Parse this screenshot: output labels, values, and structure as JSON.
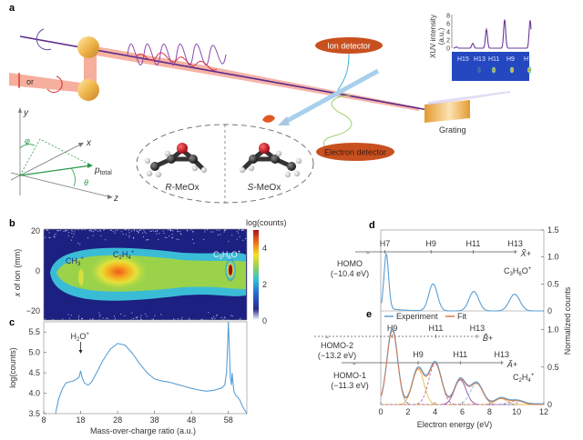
{
  "figure": {
    "panels": {
      "a": {
        "letter": "a",
        "polarization_label": "or",
        "ion_detector_label": "Ion detector",
        "electron_detector_label": "Electron detector",
        "grating_label": "Grating",
        "axes": {
          "y": "y",
          "x": "x",
          "z": "z",
          "phi": "φ",
          "theta": "θ",
          "p": "p",
          "p_sub": "total"
        },
        "molecules": [
          {
            "prefix": "R",
            "name": "-MeOx"
          },
          {
            "prefix": "S",
            "name": "-MeOx"
          }
        ],
        "xuv_inset": {
          "ylabel_line1": "XUV intensity",
          "ylabel_line2": "(a.u.)",
          "yticks": [
            "0",
            "2",
            "4",
            "6",
            "8"
          ],
          "harmonics": [
            "H15",
            "H13",
            "H11",
            "H9",
            "H7"
          ],
          "peak_values": [
            0.3,
            1.2,
            4.6,
            7.0,
            6.8
          ]
        }
      },
      "b": {
        "letter": "b",
        "ylabel_prefix": "x",
        "ylabel_rest": " of ion (mm)",
        "yticks": [
          "20",
          "0",
          "−20"
        ],
        "colorbar_label": "log(counts)",
        "colorbar_ticks": [
          "4",
          "2",
          "0"
        ],
        "species": [
          {
            "base": "CH",
            "sub": "3",
            "sup": "+"
          },
          {
            "base": "C",
            "sub": "2",
            "mid": "H",
            "sub2": "4",
            "sup": "+"
          },
          {
            "base": "C",
            "sub": "3",
            "mid": "H",
            "sub2": "6",
            "tail": "O",
            "sup": "+"
          }
        ]
      },
      "c": {
        "letter": "c"
      },
      "d": {
        "letter": "d",
        "orbital": "HOMO",
        "energy": "(−10.4 eV)",
        "state": "X̃",
        "ion": {
          "base": "C",
          "sub": "3",
          "mid": "H",
          "sub2": "6",
          "tail": "O",
          "sup": "+"
        },
        "harmonics": [
          "H7",
          "H9",
          "H11",
          "H13"
        ]
      },
      "e": {
        "letter": "e",
        "legend": [
          {
            "label": "Experiment",
            "color": "#5a9fd4"
          },
          {
            "label": "Fit",
            "color": "#d9784a"
          }
        ],
        "homo2": {
          "orbital": "HOMO-2",
          "energy": "(−13.2 eV)",
          "state": "B̃",
          "harmonics": [
            "H9",
            "H11",
            "H13"
          ]
        },
        "homo1": {
          "orbital": "HOMO-1",
          "energy": "(−11.3 eV)",
          "state": "Ã",
          "harmonics": [
            "H9",
            "H11",
            "H13"
          ]
        },
        "ion": {
          "base": "C",
          "sub": "2",
          "mid": "H",
          "sub2": "4",
          "sup": "+"
        }
      },
      "right_axis_label": "Normalized counts",
      "de_xlabel": "Electron energy (eV)"
    }
  },
  "chart_data": [
    {
      "id": "c",
      "type": "line",
      "title": "",
      "xlabel": "Mass-over-charge ratio (a.u.)",
      "ylabel": "log(counts)",
      "xlim": [
        8,
        63
      ],
      "ylim": [
        3.5,
        5.75
      ],
      "xticks": [
        8,
        18,
        28,
        38,
        48,
        58
      ],
      "yticks": [
        3.5,
        4.0,
        4.5,
        5.0,
        5.5
      ],
      "annotations": [
        {
          "text": "H2O+",
          "x": 18
        }
      ],
      "series": [
        {
          "name": "mass spectrum",
          "color": "#5a9fd4",
          "x": [
            11.2,
            12,
            13,
            14,
            15,
            16,
            17,
            17.6,
            18,
            18.4,
            19,
            20,
            21,
            22,
            24,
            26,
            28,
            30,
            32,
            34,
            36,
            38,
            40,
            42,
            44,
            46,
            48,
            50,
            52,
            54,
            55,
            56,
            57,
            57.5,
            57.8,
            58,
            58.2,
            58.5,
            58.8,
            59,
            59.2,
            59.5,
            60,
            61,
            62,
            63
          ],
          "y": [
            3.5,
            3.85,
            4.1,
            4.25,
            4.28,
            4.3,
            4.35,
            4.4,
            4.55,
            4.38,
            4.25,
            4.2,
            4.28,
            4.45,
            4.8,
            5.08,
            5.22,
            5.18,
            4.98,
            4.72,
            4.5,
            4.35,
            4.3,
            4.27,
            4.22,
            4.17,
            4.12,
            4.08,
            4.05,
            4.07,
            4.1,
            4.12,
            4.2,
            4.5,
            5.2,
            5.75,
            5.3,
            4.4,
            4.2,
            4.5,
            4.3,
            4.05,
            3.95,
            3.85,
            3.65,
            3.5
          ]
        }
      ]
    },
    {
      "id": "d",
      "type": "line",
      "xlim": [
        0,
        12
      ],
      "ylim": [
        0,
        1.5
      ],
      "yticks": [
        0,
        0.5,
        1.0,
        1.5
      ],
      "series": [
        {
          "name": "Experiment",
          "color": "#5a9fd4",
          "peaks": [
            {
              "center": 0.4,
              "height": 1.0,
              "width": 0.25
            },
            {
              "center": 3.85,
              "height": 0.5,
              "width": 0.45
            },
            {
              "center": 6.85,
              "height": 0.36,
              "width": 0.5
            },
            {
              "center": 9.85,
              "height": 0.31,
              "width": 0.55
            }
          ],
          "baseline": 0.06
        }
      ],
      "harmonic_positions": {
        "H7": 0.3,
        "H9": 3.7,
        "H11": 6.8,
        "H13": 9.9
      }
    },
    {
      "id": "e",
      "type": "line",
      "xlabel": "Electron energy (eV)",
      "ylabel": "Normalized counts",
      "xlim": [
        0,
        12
      ],
      "ylim": [
        0,
        1.25
      ],
      "xticks": [
        0,
        2,
        4,
        6,
        8,
        10,
        12
      ],
      "yticks": [
        0,
        0.5,
        1.0
      ],
      "series": [
        {
          "name": "Experiment",
          "color": "#5a9fd4"
        },
        {
          "name": "Fit",
          "color": "#d9784a"
        }
      ],
      "components": [
        {
          "name": "HOMO-2 H9",
          "center": 0.85,
          "height": 0.99,
          "width": 0.55,
          "color": "#8ab8d8",
          "dashed": false
        },
        {
          "name": "HOMO-1 H9",
          "center": 2.75,
          "height": 0.47,
          "width": 0.6,
          "color": "#e8b84a",
          "dashed": false
        },
        {
          "name": "HOMO-2 H11",
          "center": 4.0,
          "height": 0.55,
          "width": 0.65,
          "color": "#b070a8",
          "dashed": true
        },
        {
          "name": "HOMO-1 H11",
          "center": 5.85,
          "height": 0.33,
          "width": 0.6,
          "color": "#8a4ea0",
          "dashed": false
        },
        {
          "name": "HOMO-2 H13",
          "center": 7.05,
          "height": 0.28,
          "width": 0.65,
          "color": "#8ab8d8",
          "dashed": true
        },
        {
          "name": "HOMO-1 H13",
          "center": 8.85,
          "height": 0.08,
          "width": 0.6,
          "color": "#e8b84a",
          "dashed": false
        },
        {
          "name": "HOMO-2 H15",
          "center": 10.0,
          "height": 0.05,
          "width": 0.7,
          "color": "#b070a8",
          "dashed": true
        }
      ],
      "harmonic_positions": {
        "HOMO-2": {
          "H9": 0.85,
          "H11": 4.05,
          "H13": 7.1
        },
        "HOMO-1": {
          "H9": 2.75,
          "H11": 5.85,
          "H13": 8.9
        }
      }
    }
  ]
}
